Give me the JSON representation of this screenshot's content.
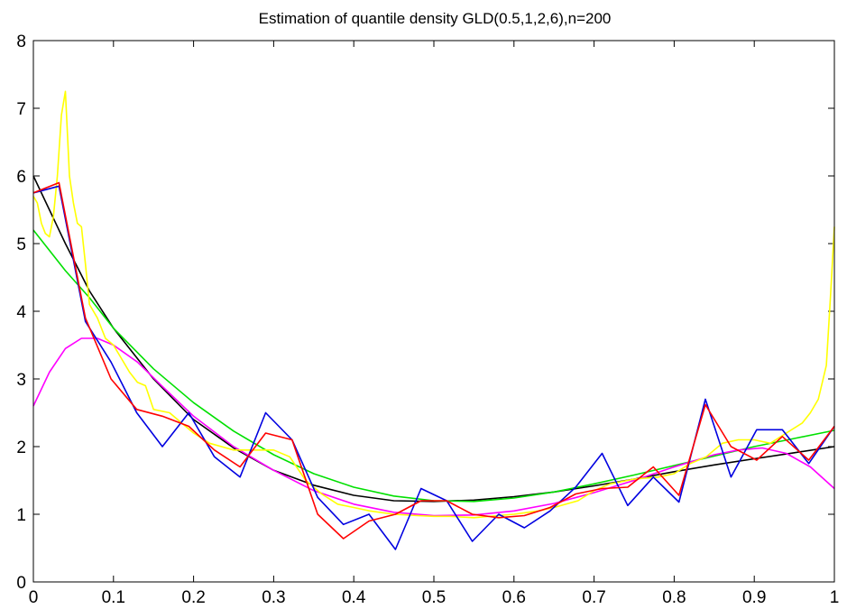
{
  "chart_data": {
    "type": "line",
    "title": "Estimation of quantile density GLD(0.5,1,2,6),n=200",
    "xlabel": "",
    "ylabel": "",
    "xlim": [
      0,
      1
    ],
    "ylim": [
      0,
      8
    ],
    "grid": false,
    "legend": "none",
    "x_ticks": [
      "0",
      "0.1",
      "0.2",
      "0.3",
      "0.4",
      "0.5",
      "0.6",
      "0.7",
      "0.8",
      "0.9",
      "1"
    ],
    "y_ticks": [
      "0",
      "1",
      "2",
      "3",
      "4",
      "5",
      "6",
      "7",
      "8"
    ],
    "series": [
      {
        "color": "#000000",
        "x": [
          0,
          0.04,
          0.07,
          0.1,
          0.15,
          0.2,
          0.25,
          0.3,
          0.35,
          0.4,
          0.45,
          0.5,
          0.55,
          0.6,
          0.65,
          0.7,
          0.75,
          0.8,
          0.85,
          0.9,
          0.95,
          1
        ],
        "y": [
          6.0,
          5.0,
          4.3,
          3.75,
          3.0,
          2.4,
          1.98,
          1.65,
          1.43,
          1.28,
          1.2,
          1.19,
          1.21,
          1.26,
          1.33,
          1.42,
          1.52,
          1.63,
          1.73,
          1.82,
          1.91,
          2.0
        ]
      },
      {
        "color": "#00e000",
        "x": [
          0,
          0.04,
          0.07,
          0.1,
          0.15,
          0.2,
          0.25,
          0.3,
          0.35,
          0.4,
          0.45,
          0.5,
          0.55,
          0.6,
          0.65,
          0.7,
          0.75,
          0.8,
          0.85,
          0.9,
          0.95,
          1
        ],
        "y": [
          5.2,
          4.6,
          4.2,
          3.75,
          3.15,
          2.65,
          2.23,
          1.88,
          1.6,
          1.4,
          1.27,
          1.2,
          1.19,
          1.24,
          1.33,
          1.45,
          1.58,
          1.72,
          1.86,
          2.0,
          2.12,
          2.24
        ]
      },
      {
        "color": "#ff00ff",
        "x": [
          0,
          0.02,
          0.04,
          0.06,
          0.08,
          0.1,
          0.13,
          0.16,
          0.2,
          0.25,
          0.3,
          0.35,
          0.4,
          0.45,
          0.5,
          0.55,
          0.6,
          0.65,
          0.7,
          0.75,
          0.8,
          0.85,
          0.88,
          0.91,
          0.94,
          0.97,
          1
        ],
        "y": [
          2.6,
          3.1,
          3.45,
          3.6,
          3.6,
          3.5,
          3.25,
          2.9,
          2.45,
          2.0,
          1.65,
          1.35,
          1.15,
          1.03,
          0.98,
          0.99,
          1.05,
          1.16,
          1.32,
          1.5,
          1.7,
          1.88,
          1.95,
          1.98,
          1.9,
          1.7,
          1.38
        ]
      },
      {
        "color": "#ffff00",
        "x": [
          0,
          0.005,
          0.01,
          0.015,
          0.02,
          0.025,
          0.03,
          0.035,
          0.04,
          0.045,
          0.05,
          0.055,
          0.06,
          0.065,
          0.07,
          0.08,
          0.09,
          0.1,
          0.11,
          0.12,
          0.13,
          0.14,
          0.15,
          0.17,
          0.2,
          0.22,
          0.25,
          0.28,
          0.3,
          0.32,
          0.34,
          0.36,
          0.38,
          0.4,
          0.42,
          0.45,
          0.48,
          0.5,
          0.52,
          0.55,
          0.58,
          0.6,
          0.63,
          0.65,
          0.68,
          0.7,
          0.72,
          0.75,
          0.78,
          0.8,
          0.82,
          0.84,
          0.86,
          0.88,
          0.9,
          0.92,
          0.94,
          0.96,
          0.97,
          0.98,
          0.99,
          0.995,
          1
        ],
        "y": [
          5.7,
          5.6,
          5.3,
          5.15,
          5.1,
          5.4,
          6.0,
          6.9,
          7.25,
          6.0,
          5.6,
          5.3,
          5.25,
          4.7,
          4.1,
          3.9,
          3.6,
          3.5,
          3.3,
          3.1,
          2.95,
          2.9,
          2.55,
          2.5,
          2.2,
          2.05,
          1.95,
          1.95,
          1.95,
          1.85,
          1.5,
          1.3,
          1.15,
          1.1,
          1.05,
          1.0,
          0.98,
          0.97,
          0.97,
          0.95,
          0.98,
          1.0,
          1.05,
          1.1,
          1.2,
          1.35,
          1.45,
          1.52,
          1.55,
          1.6,
          1.75,
          1.85,
          2.05,
          2.1,
          2.1,
          2.05,
          2.2,
          2.35,
          2.5,
          2.7,
          3.2,
          4.2,
          5.25
        ]
      },
      {
        "color": "#0000e0",
        "x": [
          0,
          0.032,
          0.065,
          0.097,
          0.129,
          0.161,
          0.194,
          0.226,
          0.258,
          0.29,
          0.323,
          0.355,
          0.387,
          0.419,
          0.452,
          0.484,
          0.516,
          0.548,
          0.581,
          0.613,
          0.645,
          0.677,
          0.71,
          0.742,
          0.774,
          0.806,
          0.839,
          0.871,
          0.903,
          0.935,
          0.968,
          1
        ],
        "y": [
          5.75,
          5.85,
          3.85,
          3.25,
          2.5,
          2.0,
          2.5,
          1.85,
          1.55,
          2.5,
          2.1,
          1.25,
          0.85,
          1.0,
          0.48,
          1.38,
          1.2,
          0.6,
          1.0,
          0.8,
          1.05,
          1.4,
          1.9,
          1.13,
          1.55,
          1.18,
          2.7,
          1.55,
          2.25,
          2.25,
          1.75,
          2.3
        ]
      },
      {
        "color": "#ff0000",
        "x": [
          0,
          0.032,
          0.065,
          0.097,
          0.129,
          0.161,
          0.194,
          0.226,
          0.258,
          0.29,
          0.323,
          0.355,
          0.387,
          0.419,
          0.452,
          0.484,
          0.516,
          0.548,
          0.581,
          0.613,
          0.645,
          0.677,
          0.71,
          0.742,
          0.774,
          0.806,
          0.839,
          0.871,
          0.903,
          0.935,
          0.968,
          1
        ],
        "y": [
          5.75,
          5.9,
          3.9,
          3.0,
          2.55,
          2.45,
          2.3,
          1.95,
          1.7,
          2.2,
          2.1,
          1.0,
          0.64,
          0.9,
          1.0,
          1.2,
          1.2,
          1.0,
          0.95,
          0.98,
          1.1,
          1.3,
          1.38,
          1.4,
          1.7,
          1.28,
          2.62,
          2.0,
          1.8,
          2.15,
          1.8,
          2.3
        ]
      }
    ]
  }
}
